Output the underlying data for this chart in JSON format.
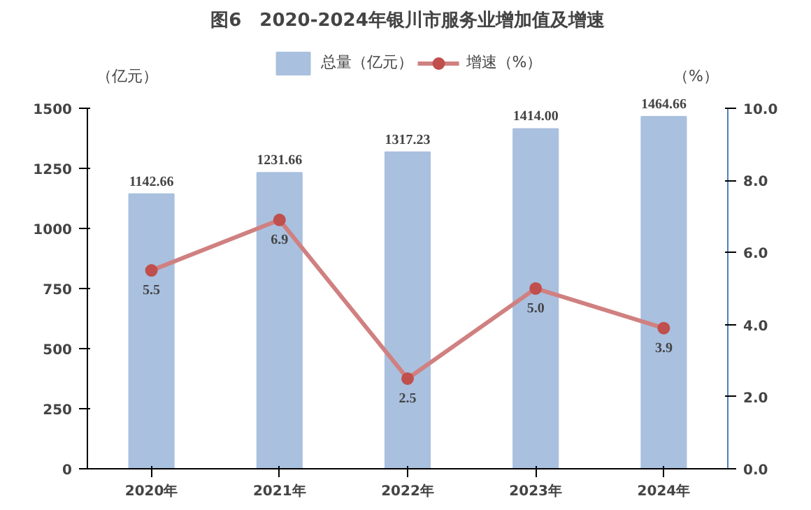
{
  "chart_data": {
    "type": "bar",
    "title": "图6　2020-2024年银川市服务业增加值及增速",
    "ylabel": "（亿元）",
    "y2label": "（%）",
    "categories": [
      "2020年",
      "2021年",
      "2022年",
      "2023年",
      "2024年"
    ],
    "series": [
      {
        "name": "总量（亿元）",
        "color": "#a9c0df",
        "values": [
          1142.66,
          1231.66,
          1317.23,
          1414.0,
          1464.66
        ],
        "value_labels": [
          "1142.66",
          "1231.66",
          "1317.23",
          "1414.00",
          "1464.66"
        ]
      },
      {
        "name": "增速（%）",
        "type": "line",
        "axis": "y2",
        "color": "#d08080",
        "marker": "circle",
        "values": [
          5.5,
          6.9,
          2.5,
          5.0,
          3.9
        ],
        "value_labels": [
          "5.5",
          "6.9",
          "2.5",
          "5.0",
          "3.9"
        ]
      }
    ],
    "ylim": [
      0,
      1500
    ],
    "yticks": [
      0,
      250,
      500,
      750,
      1000,
      1250,
      1500
    ],
    "y2lim": [
      0,
      10
    ],
    "y2ticks": [
      {
        "value": 0,
        "label": "0.0"
      },
      {
        "value": 2,
        "label": "2.0"
      },
      {
        "value": 4,
        "label": "4.0"
      },
      {
        "value": 6,
        "label": "6.0"
      },
      {
        "value": 8,
        "label": "8.0"
      },
      {
        "value": 10,
        "label": "10.0"
      }
    ],
    "legend": "top",
    "grid": false
  }
}
